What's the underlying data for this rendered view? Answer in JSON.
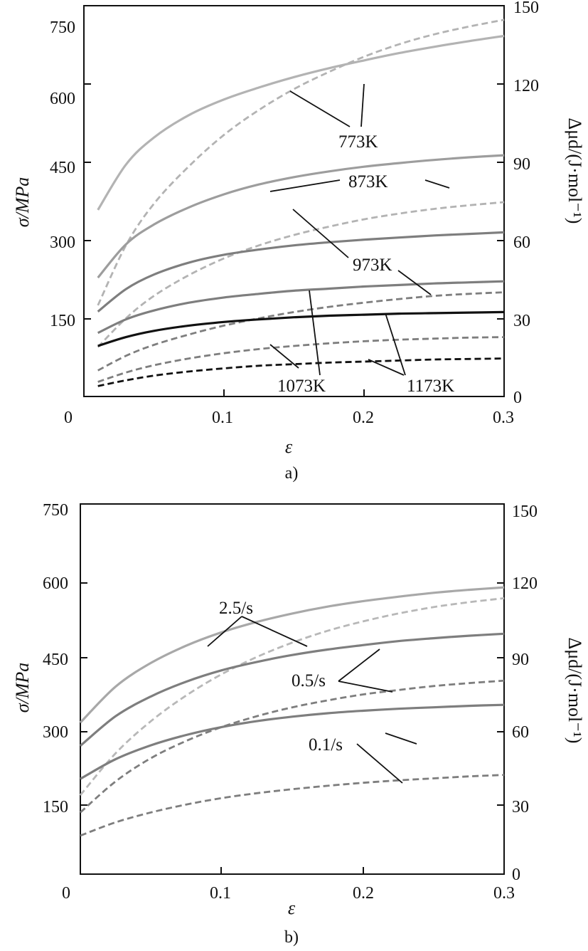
{
  "chart_data": [
    {
      "type": "line",
      "panel_label": "a)",
      "xlabel": "ε",
      "ylabel_left": "σ/MPa",
      "ylabel_right": "Δμd/(J·mol⁻¹)",
      "xlim": [
        0,
        0.3
      ],
      "ylim_left": [
        0,
        750
      ],
      "ylim_right": [
        0,
        150
      ],
      "x_ticks": [
        "0",
        "0.1",
        "0.2",
        "0.3"
      ],
      "y_ticks_left": [
        "150",
        "300",
        "450",
        "600",
        "750"
      ],
      "y_ticks_right": [
        "0",
        "30",
        "60",
        "90",
        "120",
        "150"
      ],
      "x": [
        0.01,
        0.03,
        0.05,
        0.075,
        0.1,
        0.125,
        0.15,
        0.175,
        0.2,
        0.225,
        0.25,
        0.275,
        0.3
      ],
      "series": [
        {
          "name": "773K stress",
          "style": "solid",
          "axis": "left",
          "color": "#b3b3b3",
          "values": [
            358,
            445,
            497,
            540,
            570,
            593,
            613,
            630,
            645,
            659,
            671,
            682,
            692
          ]
        },
        {
          "name": "773K chemical potential",
          "style": "dashed",
          "axis": "left",
          "color": "#b3b3b3",
          "values": [
            175,
            290,
            370,
            442,
            502,
            550,
            590,
            623,
            652,
            676,
            695,
            710,
            723
          ]
        },
        {
          "name": "873K stress",
          "style": "solid",
          "axis": "left",
          "color": "#9d9d9d",
          "values": [
            228,
            292,
            330,
            363,
            388,
            407,
            421,
            432,
            441,
            448,
            454,
            459,
            463
          ]
        },
        {
          "name": "873K chemical potential",
          "style": "dashed",
          "axis": "left",
          "color": "#b3b3b3",
          "values": [
            95,
            150,
            193,
            233,
            265,
            290,
            310,
            326,
            340,
            351,
            360,
            367,
            373
          ]
        },
        {
          "name": "973K stress",
          "style": "solid",
          "axis": "left",
          "color": "#7e7e7e",
          "values": [
            163,
            206,
            234,
            257,
            272,
            282,
            290,
            296,
            301,
            305,
            309,
            312,
            315
          ]
        },
        {
          "name": "973K chemical potential",
          "style": "dashed",
          "axis": "left",
          "color": "#7e7e7e",
          "values": [
            50,
            78,
            99,
            119,
            136,
            150,
            162,
            172,
            180,
            187,
            193,
            197,
            200
          ]
        },
        {
          "name": "1073K stress",
          "style": "solid",
          "axis": "left",
          "color": "#7e7e7e",
          "values": [
            122,
            148,
            165,
            180,
            190,
            197,
            203,
            207,
            211,
            214,
            217,
            219,
            221
          ]
        },
        {
          "name": "1073K chemical potential",
          "style": "dashed",
          "axis": "left",
          "color": "#7e7e7e",
          "values": [
            28,
            46,
            60,
            73,
            83,
            91,
            97,
            102,
            106,
            109,
            111,
            113,
            114
          ]
        },
        {
          "name": "1173K stress",
          "style": "solid",
          "axis": "left",
          "color": "#111111",
          "values": [
            97,
            114,
            126,
            136,
            143,
            148,
            152,
            155,
            157,
            159,
            160,
            161,
            162
          ]
        },
        {
          "name": "1173K chemical potential",
          "style": "dashed",
          "axis": "left",
          "color": "#111111",
          "values": [
            20,
            31,
            40,
            48,
            54,
            59,
            62,
            65,
            67,
            69,
            71,
            72,
            73
          ]
        }
      ],
      "annotations": [
        "773K",
        "873K",
        "973K",
        "1073K",
        "1173K"
      ]
    },
    {
      "type": "line",
      "panel_label": "b)",
      "xlabel": "ε",
      "ylabel_left": "σ/MPa",
      "ylabel_right": "Δμd/(J·mol⁻¹)",
      "xlim": [
        0,
        0.3
      ],
      "ylim_left": [
        0,
        750
      ],
      "ylim_right": [
        0,
        150
      ],
      "x_ticks": [
        "0",
        "0.1",
        "0.2",
        "0.3"
      ],
      "y_ticks_left": [
        "150",
        "300",
        "450",
        "600",
        "750"
      ],
      "y_ticks_right": [
        "0",
        "30",
        "60",
        "90",
        "120",
        "150"
      ],
      "x": [
        0.0,
        0.025,
        0.05,
        0.075,
        0.1,
        0.125,
        0.15,
        0.175,
        0.2,
        0.225,
        0.25,
        0.275,
        0.3
      ],
      "series": [
        {
          "name": "2.5/s stress",
          "style": "solid",
          "axis": "left",
          "color": "#a8a8a8",
          "values": [
            307,
            380,
            428,
            463,
            490,
            511,
            528,
            542,
            553,
            562,
            570,
            576,
            581
          ]
        },
        {
          "name": "2.5/s chemical potential",
          "style": "dashed",
          "axis": "left",
          "color": "#b8b8b8",
          "values": [
            160,
            245,
            310,
            362,
            405,
            440,
            469,
            493,
            512,
            528,
            541,
            551,
            559
          ]
        },
        {
          "name": "0.5/s stress",
          "style": "solid",
          "axis": "left",
          "color": "#7e7e7e",
          "values": [
            260,
            320,
            360,
            390,
            413,
            430,
            444,
            455,
            464,
            472,
            478,
            483,
            487
          ]
        },
        {
          "name": "0.5/s chemical potential",
          "style": "dashed",
          "axis": "left",
          "color": "#7e7e7e",
          "values": [
            125,
            188,
            235,
            270,
            298,
            320,
            338,
            352,
            364,
            373,
            381,
            387,
            392
          ]
        },
        {
          "name": "0.1/s stress",
          "style": "solid",
          "axis": "left",
          "color": "#7e7e7e",
          "values": [
            193,
            233,
            261,
            282,
            298,
            310,
            319,
            326,
            331,
            335,
            338,
            341,
            343
          ]
        },
        {
          "name": "0.1/s chemical potential",
          "style": "dashed",
          "axis": "left",
          "color": "#7e7e7e",
          "values": [
            78,
            105,
            125,
            141,
            154,
            164,
            172,
            179,
            185,
            190,
            194,
            198,
            201
          ]
        }
      ],
      "annotations": [
        "2.5/s",
        "0.5/s",
        "0.1/s"
      ]
    }
  ]
}
